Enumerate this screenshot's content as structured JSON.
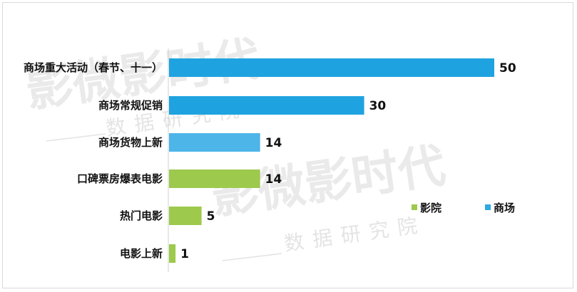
{
  "watermark": {
    "brand": "影微影时代",
    "sub": "数据研究院"
  },
  "chart_data": {
    "type": "bar",
    "orientation": "horizontal",
    "categories": [
      "商场重大活动（春节、十一）",
      "商场常规促销",
      "商场货物上新",
      "口碑票房爆表电影",
      "热门电影",
      "电影上新"
    ],
    "values": [
      50,
      30,
      14,
      14,
      5,
      1
    ],
    "groups": [
      "商场",
      "商场",
      "商场",
      "影院",
      "影院",
      "影院"
    ],
    "legend": [
      {
        "name": "影院",
        "color": "#9dc94d"
      },
      {
        "name": "商场",
        "color": "#2ea9e2"
      }
    ],
    "legend_position": "right",
    "colors": [
      "#1fa3e0",
      "#1fa3e0",
      "#4db5e8",
      "#9dc94d",
      "#9dc94d",
      "#9dc94d"
    ],
    "xlim": [
      0,
      50
    ],
    "grid": false
  }
}
